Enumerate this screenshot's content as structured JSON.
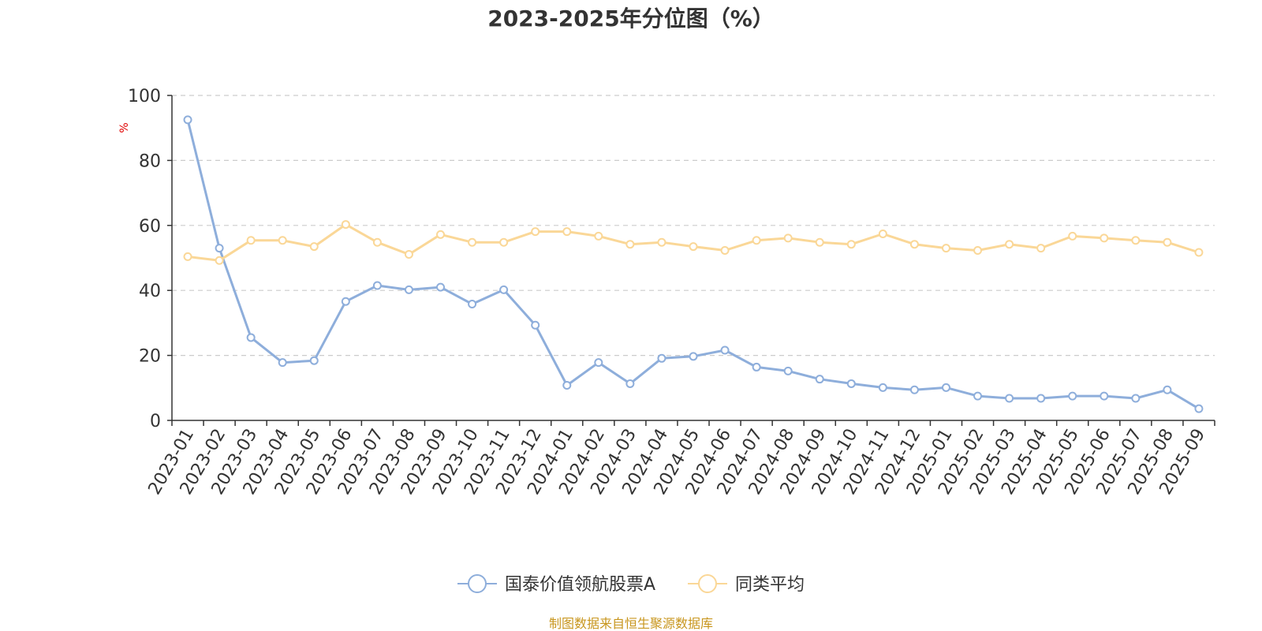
{
  "chart_data": {
    "type": "line",
    "title": "2023-2025年分位图（%）",
    "ylabel": "%",
    "xlabel": "",
    "ylim": [
      0,
      100
    ],
    "yticks": [
      "0",
      "20",
      "40",
      "60",
      "80",
      "100"
    ],
    "grid": true,
    "legend_position": "bottom-center",
    "categories": [
      "2023-01",
      "2023-02",
      "2023-03",
      "2023-04",
      "2023-05",
      "2023-06",
      "2023-07",
      "2023-08",
      "2023-09",
      "2023-10",
      "2023-11",
      "2023-12",
      "2024-01",
      "2024-02",
      "2024-03",
      "2024-04",
      "2024-05",
      "2024-06",
      "2024-07",
      "2024-08",
      "2024-09",
      "2024-10",
      "2024-11",
      "2024-12",
      "2025-01",
      "2025-02",
      "2025-03",
      "2025-04",
      "2025-05",
      "2025-06",
      "2025-07",
      "2025-08",
      "2025-09"
    ],
    "series": [
      {
        "name": "国泰价值领航股票A",
        "color": "#8eaedb",
        "values": [
          92.5,
          53,
          25.5,
          17.8,
          18.4,
          36.6,
          41.5,
          40.2,
          41,
          35.8,
          40.2,
          29.3,
          10.8,
          17.8,
          11.3,
          19.1,
          19.7,
          21.6,
          16.4,
          15.2,
          12.7,
          11.3,
          10.1,
          9.4,
          10.1,
          7.5,
          6.8,
          6.8,
          7.5,
          7.5,
          6.8,
          9.4,
          3.6
        ]
      },
      {
        "name": "同类平均",
        "color": "#fad797",
        "values": [
          50.4,
          49.2,
          55.4,
          55.4,
          53.5,
          60.3,
          54.8,
          51.1,
          57.2,
          54.8,
          54.8,
          58.1,
          58.1,
          56.7,
          54.2,
          54.8,
          53.5,
          52.3,
          55.4,
          56.1,
          54.8,
          54.2,
          57.4,
          54.2,
          53,
          52.3,
          54.2,
          53,
          56.7,
          56.1,
          55.4,
          54.8,
          51.7
        ]
      }
    ]
  },
  "source": "制图数据来自恒生聚源数据库"
}
